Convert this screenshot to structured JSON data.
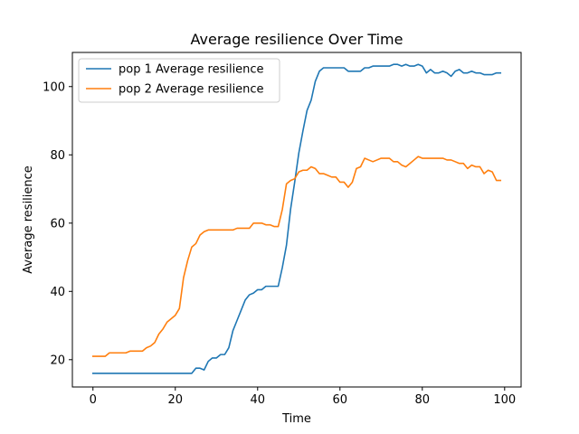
{
  "chart_data": {
    "type": "line",
    "title": "Average resilience Over Time",
    "xlabel": "Time",
    "ylabel": "Average resilience",
    "xlim": [
      -5,
      104
    ],
    "ylim": [
      12,
      110
    ],
    "xticks": [
      0,
      20,
      40,
      60,
      80,
      100
    ],
    "yticks": [
      20,
      40,
      60,
      80,
      100
    ],
    "grid": false,
    "legend_position": "upper-left",
    "series": [
      {
        "name": "pop 1 Average resilience",
        "color": "#1f77b4",
        "x": [
          0,
          1,
          2,
          3,
          4,
          5,
          6,
          7,
          8,
          9,
          10,
          11,
          12,
          13,
          14,
          15,
          16,
          17,
          18,
          19,
          20,
          21,
          22,
          23,
          24,
          25,
          26,
          27,
          28,
          29,
          30,
          31,
          32,
          33,
          34,
          35,
          36,
          37,
          38,
          39,
          40,
          41,
          42,
          43,
          44,
          45,
          46,
          47,
          48,
          49,
          50,
          51,
          52,
          53,
          54,
          55,
          56,
          57,
          58,
          59,
          60,
          61,
          62,
          63,
          64,
          65,
          66,
          67,
          68,
          69,
          70,
          71,
          72,
          73,
          74,
          75,
          76,
          77,
          78,
          79,
          80,
          81,
          82,
          83,
          84,
          85,
          86,
          87,
          88,
          89,
          90,
          91,
          92,
          93,
          94,
          95,
          96,
          97,
          98,
          99
        ],
        "y": [
          16,
          16,
          16,
          16,
          16,
          16,
          16,
          16,
          16,
          16,
          16,
          16,
          16,
          16,
          16,
          16,
          16,
          16,
          16,
          16,
          16,
          16,
          16,
          16,
          16,
          17.5,
          17.5,
          17,
          19.5,
          20.5,
          20.5,
          21.5,
          21.5,
          23.5,
          28.5,
          31.5,
          34.5,
          37.5,
          39,
          39.5,
          40.5,
          40.5,
          41.5,
          41.5,
          41.5,
          41.5,
          47,
          53.5,
          64,
          72,
          80.5,
          87,
          93,
          96,
          101.5,
          104.5,
          105.5,
          105.5,
          105.5,
          105.5,
          105.5,
          105.5,
          104.5,
          104.5,
          104.5,
          104.5,
          105.5,
          105.5,
          106,
          106,
          106,
          106,
          106,
          106.5,
          106.5,
          106,
          106.5,
          106,
          106,
          106.5,
          106,
          104,
          105,
          104,
          104,
          104.5,
          104,
          103,
          104.5,
          105,
          104,
          104,
          104.5,
          104,
          104,
          103.5,
          103.5,
          103.5,
          104,
          104
        ]
      },
      {
        "name": "pop 2 Average resilience",
        "color": "#ff7f0e",
        "x": [
          0,
          1,
          2,
          3,
          4,
          5,
          6,
          7,
          8,
          9,
          10,
          11,
          12,
          13,
          14,
          15,
          16,
          17,
          18,
          19,
          20,
          21,
          22,
          23,
          24,
          25,
          26,
          27,
          28,
          29,
          30,
          31,
          32,
          33,
          34,
          35,
          36,
          37,
          38,
          39,
          40,
          41,
          42,
          43,
          44,
          45,
          46,
          47,
          48,
          49,
          50,
          51,
          52,
          53,
          54,
          55,
          56,
          57,
          58,
          59,
          60,
          61,
          62,
          63,
          64,
          65,
          66,
          67,
          68,
          69,
          70,
          71,
          72,
          73,
          74,
          75,
          76,
          77,
          78,
          79,
          80,
          81,
          82,
          83,
          84,
          85,
          86,
          87,
          88,
          89,
          90,
          91,
          92,
          93,
          94,
          95,
          96,
          97,
          98,
          99
        ],
        "y": [
          21,
          21,
          21,
          21,
          22,
          22,
          22,
          22,
          22,
          22.5,
          22.5,
          22.5,
          22.5,
          23.5,
          24,
          25,
          27.5,
          29,
          31,
          32,
          33,
          35,
          44,
          49,
          53,
          54,
          56.5,
          57.5,
          58,
          58,
          58,
          58,
          58,
          58,
          58,
          58.5,
          58.5,
          58.5,
          58.5,
          60,
          60,
          60,
          59.5,
          59.5,
          59,
          59,
          64,
          71.5,
          72.5,
          73,
          75,
          75.5,
          75.5,
          76.5,
          76,
          74.5,
          74.5,
          74,
          73.5,
          73.5,
          72,
          72,
          70.5,
          72,
          76,
          76.5,
          79,
          78.5,
          78,
          78.5,
          79,
          79,
          79,
          78,
          78,
          77,
          76.5,
          77.5,
          78.5,
          79.5,
          79,
          79,
          79,
          79,
          79,
          79,
          78.5,
          78.5,
          78,
          77.5,
          77.5,
          76,
          77,
          76.5,
          76.5,
          74.5,
          75.5,
          75,
          72.5,
          72.5
        ]
      }
    ]
  }
}
